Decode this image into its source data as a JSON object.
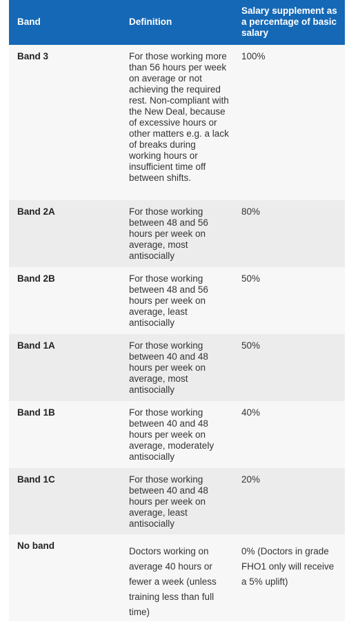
{
  "headers": {
    "band": "Band",
    "definition": "Definition",
    "salary": "Salary supplement as a percentage of basic salary"
  },
  "rows": [
    {
      "band": "Band 3",
      "definition": "For those working more than 56 hours per week on average or not achieving the required rest. Non-compliant with the New Deal, because of excessive hours or other matters e.g. a lack of breaks during working hours or insufficient time off between shifts.",
      "salary": "100%"
    },
    {
      "band": "Band 2A",
      "definition": "For those working between 48 and 56 hours per week on average, most antisocially",
      "salary": "80%"
    },
    {
      "band": "Band 2B",
      "definition": "For those working between 48 and 56 hours per week on average, least antisocially",
      "salary": "50%"
    },
    {
      "band": "Band 1A",
      "definition": "For those working between 40 and 48 hours per week on average, most antisocially",
      "salary": "50%"
    },
    {
      "band": "Band 1B",
      "definition": "For those working between 40 and 48 hours per week on average, moderately antisocially",
      "salary": "40%"
    },
    {
      "band": "Band 1C",
      "definition": "For those working between 40 and 48 hours per week on average, least antisocially",
      "salary": "20%"
    },
    {
      "band": "No band",
      "definition": "Doctors working on average 40 hours or fewer a week (unless training less than full time)",
      "salary": "0% (Doctors in grade FHO1 only will receive a 5% uplift)"
    }
  ],
  "colors": {
    "header_bg": "#1568b5",
    "row_odd": "#f7f7f7",
    "row_even": "#ececec"
  }
}
